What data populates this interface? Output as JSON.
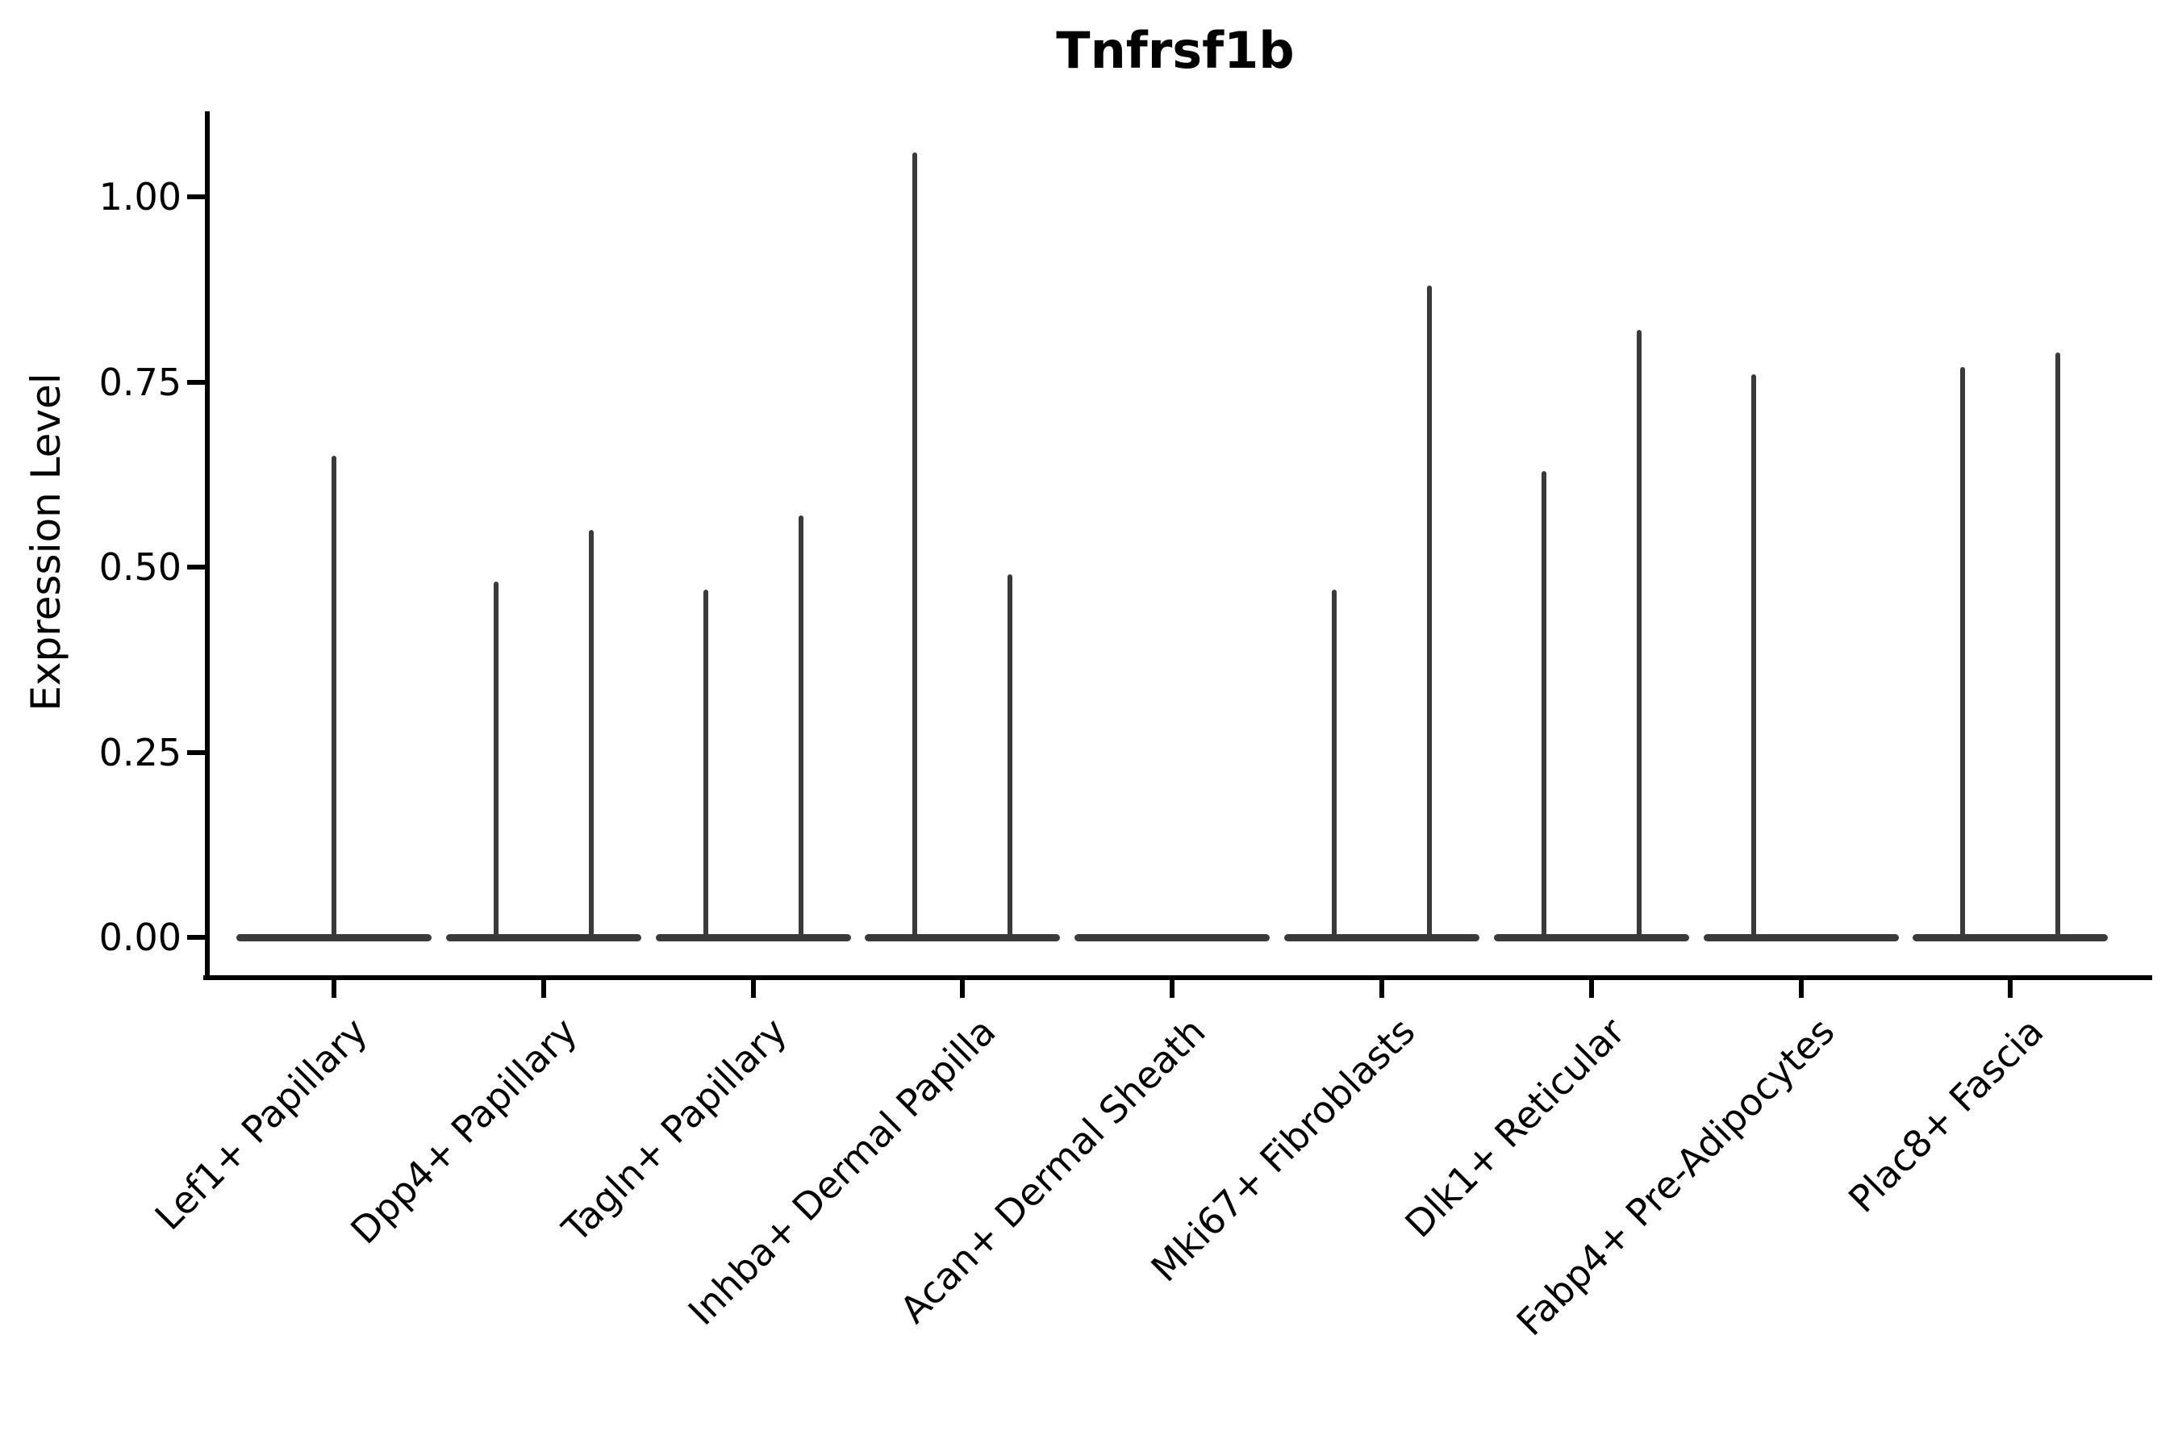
{
  "title": "Tnfrsf1b",
  "colors": {
    "violin": "#3a3a3a",
    "axis": "#000000",
    "text": "#000000",
    "background": "#ffffff"
  },
  "chart_data": {
    "type": "violin",
    "title": "Tnfrsf1b",
    "xlabel": "",
    "ylabel": "Expression Level",
    "ylim": [
      0,
      1.11
    ],
    "yticks": [
      0,
      0.25,
      0.5,
      0.75,
      1.0
    ],
    "ytick_labels": [
      "0.00",
      "0.25",
      "0.50",
      "0.75",
      "1.00"
    ],
    "grid": false,
    "legend": "none",
    "categories": [
      "Lef1+ Papillary",
      "Dpp4+ Papillary",
      "Tagln+ Papillary",
      "Inhba+ Dermal Papilla",
      "Acan+ Dermal Sheath",
      "Mki67+ Fibroblasts",
      "Dlk1+ Reticular",
      "Fabp4+ Pre-Adipocytes",
      "Plac8+ Fascia"
    ],
    "violins": [
      {
        "category": "Lef1+ Papillary",
        "baseline_value": 0,
        "spikes": [
          {
            "side": "center",
            "max": 0.65
          }
        ]
      },
      {
        "category": "Dpp4+ Papillary",
        "baseline_value": 0,
        "spikes": [
          {
            "side": "left",
            "max": 0.48
          },
          {
            "side": "right",
            "max": 0.55
          }
        ]
      },
      {
        "category": "Tagln+ Papillary",
        "baseline_value": 0,
        "spikes": [
          {
            "side": "left",
            "max": 0.47
          },
          {
            "side": "right",
            "max": 0.57
          }
        ]
      },
      {
        "category": "Inhba+ Dermal Papilla",
        "baseline_value": 0,
        "spikes": [
          {
            "side": "left",
            "max": 1.06
          },
          {
            "side": "right",
            "max": 0.49
          }
        ]
      },
      {
        "category": "Acan+ Dermal Sheath",
        "baseline_value": 0,
        "spikes": []
      },
      {
        "category": "Mki67+ Fibroblasts",
        "baseline_value": 0,
        "spikes": [
          {
            "side": "left",
            "max": 0.47
          },
          {
            "side": "right",
            "max": 0.88
          }
        ]
      },
      {
        "category": "Dlk1+ Reticular",
        "baseline_value": 0,
        "spikes": [
          {
            "side": "left",
            "max": 0.63
          },
          {
            "side": "right",
            "max": 0.82
          }
        ]
      },
      {
        "category": "Fabp4+ Pre-Adipocytes",
        "baseline_value": 0,
        "spikes": [
          {
            "side": "left",
            "max": 0.76
          }
        ]
      },
      {
        "category": "Plac8+ Fascia",
        "baseline_value": 0,
        "spikes": [
          {
            "side": "left",
            "max": 0.77
          },
          {
            "side": "right",
            "max": 0.79
          }
        ]
      }
    ]
  }
}
